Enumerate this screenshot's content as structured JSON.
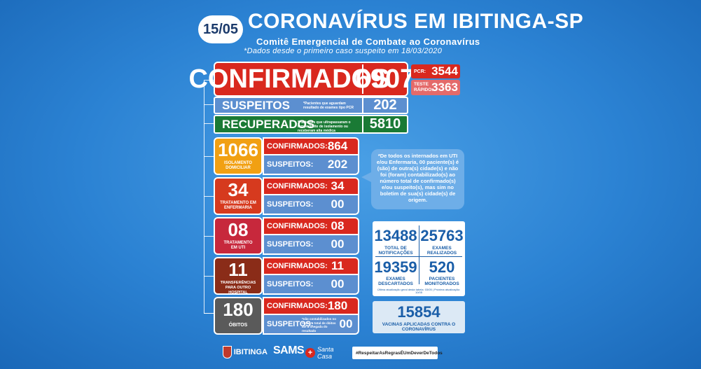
{
  "header": {
    "date": "15/05",
    "title": "CORONAVÍRUS EM IBITINGA-SP",
    "subtitle": "Comitê Emergencial de Combate ao Coronavírus",
    "note": "*Dados desde o primeiro caso suspeito em 18/03/2020"
  },
  "summary": {
    "confirmed_label": "CONFIRMADOS",
    "confirmed_value": "6907",
    "pcr_label": "PCR:",
    "pcr_value": "3544",
    "rapid_label_1": "TESTE",
    "rapid_label_2": "RÁPIDO:",
    "rapid_value": "3363",
    "suspects_label": "SUSPEITOS",
    "suspects_note": "*Pacientes que aguardam resultado de exames tipo PCR",
    "suspects_value": "202",
    "recovered_label": "RECUPERADOS",
    "recovered_note": "*Pacientes que ultrapassaram o tempo limite de isolamento ou receberam alta médica",
    "recovered_value": "5810"
  },
  "groups": [
    {
      "number": "1066",
      "caption": "ISOLAMENTO DOMICILIAR",
      "confirmed_label": "CONFIRMADOS:",
      "confirmed_value": "864",
      "suspects_label": "SUSPEITOS:",
      "suspects_value": "202"
    },
    {
      "number": "34",
      "caption": "TRATAMENTO EM ENFERMARIA",
      "confirmed_label": "CONFIRMADOS:",
      "confirmed_value": "34",
      "suspects_label": "SUSPEITOS:",
      "suspects_value": "00"
    },
    {
      "number": "08",
      "caption": "TRATAMENTO EM UTI",
      "confirmed_label": "CONFIRMADOS:",
      "confirmed_value": "08",
      "suspects_label": "SUSPEITOS:",
      "suspects_value": "00"
    },
    {
      "number": "11",
      "caption": "TRANSFERÊNCIAS PARA OUTRO HOSPITAL",
      "confirmed_label": "CONFIRMADOS:",
      "confirmed_value": "11",
      "suspects_label": "SUSPEITOS:",
      "suspects_value": "00"
    },
    {
      "number": "180",
      "caption": "ÓBITOS",
      "confirmed_label": "CONFIRMADOS:",
      "confirmed_value": "180",
      "suspects_label": "SUSPEITOS:",
      "suspects_value": "00",
      "suspects_note": "*não contabilizados no número total de óbitos até a chegada do resultado"
    }
  ],
  "callout": {
    "text": "*De todos os internados em UTI e/ou Enfermaria, 00 paciente(s) é (são) de outra(s) cidade(s) e não foi (foram) contabilizado(s) ao número total de confirmado(s) e/ou suspeito(s), mas sim no boletim de sua(s) cidade(s) de origem."
  },
  "stats": {
    "notifications_value": "13488",
    "notifications_label": "TOTAL DE NOTIFICAÇÕES",
    "exams_value": "25763",
    "exams_label": "EXAMES REALIZADOS",
    "discarded_value": "19359",
    "discarded_label": "EXAMES DESCARTADOS",
    "monitored_value": "520",
    "monitored_label": "PACIENTES MONITORADOS",
    "footer_note": "Última atualização geral desta tabela: 03/05 | Próxima atualização: 10/05"
  },
  "vaccines": {
    "value": "15854",
    "label": "VACINAS APLICADAS CONTRA O CORONAVÍRUS"
  },
  "footer": {
    "logo_ibitinga": "IBITINGA",
    "logo_sams": "SAMS",
    "logo_santa_casa": "Santa Casa",
    "hashtag": "#RespeitarAsRegrasÉUmDeverDeTodos"
  },
  "colors": {
    "confirmed_red": "#d9281e",
    "pcr_pink": "#e46a6a",
    "suspect_blue": "#5c8fd0",
    "recovered_green": "#1a7a35",
    "isolation_orange": "#f1a013",
    "ward_red": "#d63a1e",
    "icu_red": "#c7283c",
    "transfer_brown": "#8a2c18",
    "deaths_gray": "#5a5a5a",
    "stat_blue": "#1a5ea8"
  }
}
